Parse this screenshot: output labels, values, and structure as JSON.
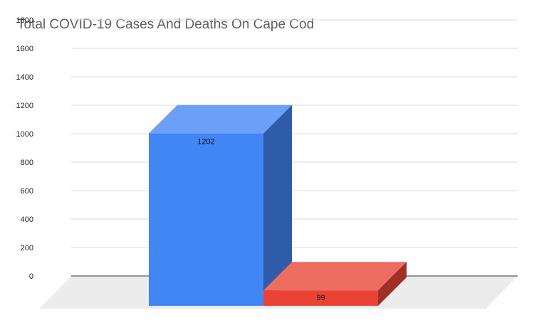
{
  "chart_data": {
    "type": "bar",
    "title": "Total COVID-19 Cases And Deaths On Cape Cod",
    "categories": [
      "",
      ""
    ],
    "values": [
      1202,
      99
    ],
    "data_labels": [
      "1202",
      "99"
    ],
    "colors": {
      "bar_front": [
        "#4285f4",
        "#ea4335"
      ],
      "bar_top": [
        "#6ba0f6",
        "#ee6d61"
      ],
      "bar_side": [
        "#2f5ca9",
        "#a22f25"
      ],
      "floor": "#ececec",
      "grid": "#d9d9d9",
      "baseline": "#333333",
      "title": "#5f5f5f",
      "tick_label": "#222222"
    },
    "ylim": [
      0,
      1800
    ],
    "yticks": [
      0,
      200,
      400,
      600,
      800,
      1000,
      1200,
      1400,
      1600,
      1800
    ],
    "ytick_labels": [
      "0",
      "200",
      "400",
      "600",
      "800",
      "1000",
      "1200",
      "1400",
      "1600",
      "1800"
    ],
    "grid": true,
    "legend": "none",
    "style": "3d"
  }
}
